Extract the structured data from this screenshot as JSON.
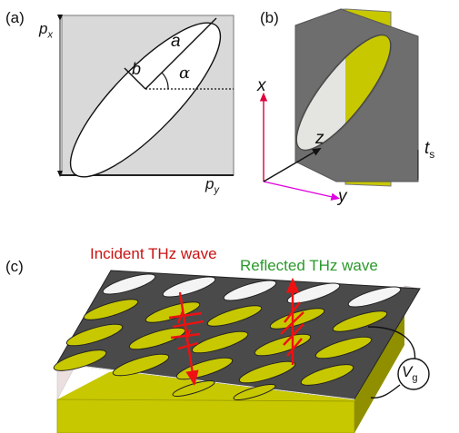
{
  "panels": {
    "a": {
      "label": "(a)",
      "axis_vertical": "p",
      "axis_vertical_sub": "x",
      "axis_horizontal": "p",
      "axis_horizontal_sub": "y",
      "semi_major": "a",
      "semi_minor": "b",
      "angle": "α"
    },
    "b": {
      "label": "(b)",
      "axis_x": "x",
      "axis_y": "y",
      "axis_z": "z",
      "thickness": "t",
      "thickness_sub": "s"
    },
    "c": {
      "label": "(c)",
      "incident": "Incident THz wave",
      "reflected": "Reflected THz wave",
      "gate": "V",
      "gate_sub": "g"
    }
  },
  "colors": {
    "square_fill": "#d9d9d9",
    "plate_dark": "#6e6e6e",
    "plate_light": "#c6c6c6",
    "gold": "#c8c800",
    "gold_dark": "#8f8f00",
    "axis_red": "#e0003c",
    "axis_magenta": "#e000e0",
    "incident_text": "#cc1111",
    "reflected_text": "#2a9a2a",
    "wave_red": "#ee1111"
  }
}
